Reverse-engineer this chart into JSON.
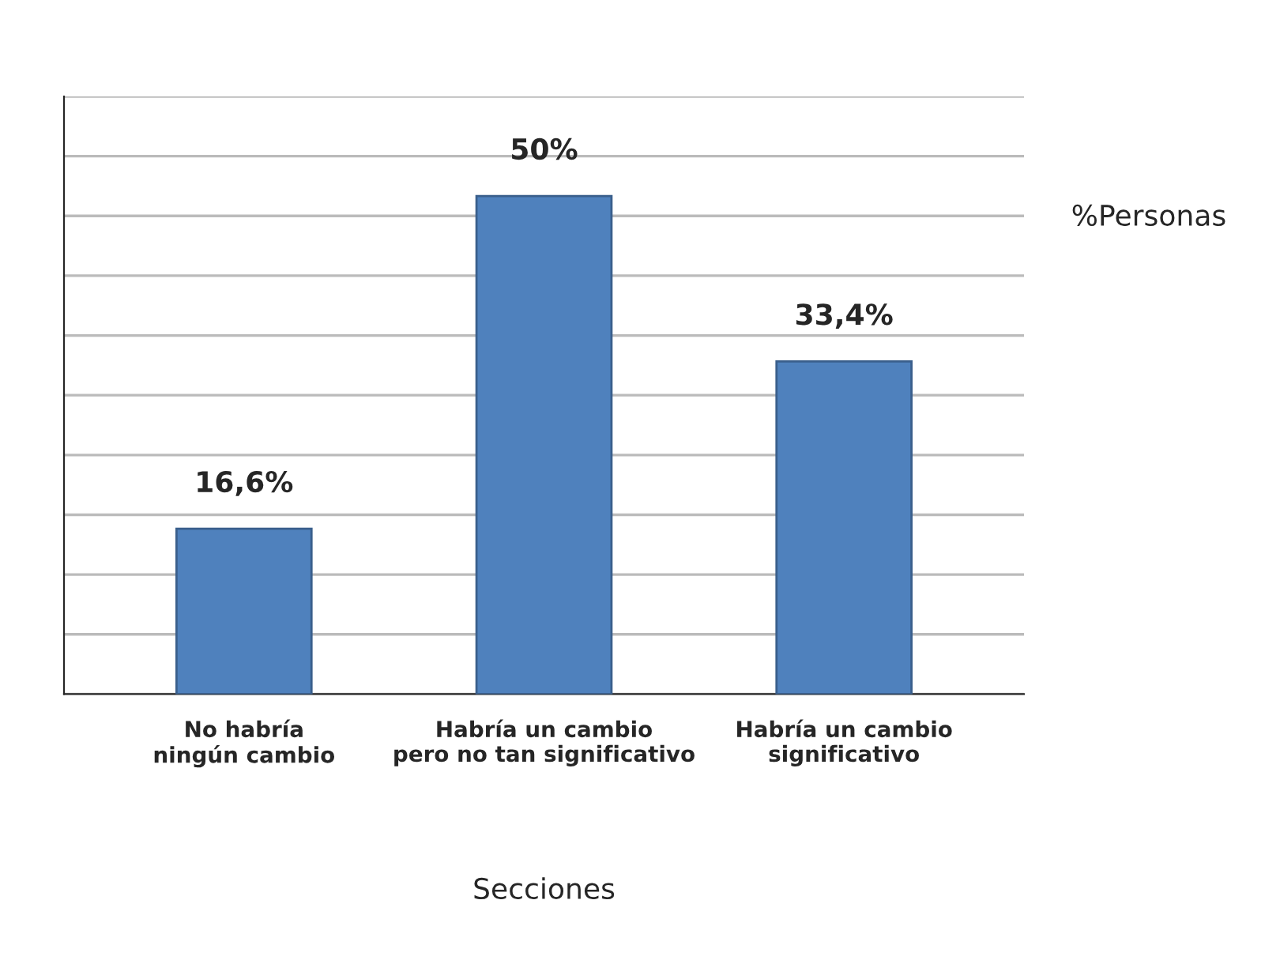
{
  "chart_data": {
    "type": "bar",
    "categories": [
      "No habría\nningún cambio",
      "Habría un cambio\npero no tan significativo",
      "Habría un cambio\nsignificativo"
    ],
    "values": [
      16.6,
      50,
      33.4
    ],
    "value_labels": [
      "16,6%",
      "50%",
      "33,4%"
    ],
    "color": "#4f81bd",
    "xlabel": "Secciones",
    "ylabel": "%Personas",
    "ylim": [
      0,
      60
    ],
    "yticks": [
      {
        "value": 0,
        "label": null
      },
      {
        "value": 6,
        "label": null
      },
      {
        "value": 12,
        "label": null
      },
      {
        "value": 18,
        "label": null
      },
      {
        "value": 24,
        "label": null
      },
      {
        "value": 30,
        "label": null
      },
      {
        "value": 36,
        "label": null
      },
      {
        "value": 42,
        "label": null
      },
      {
        "value": 48,
        "label": null
      },
      {
        "value": 54,
        "label": null
      },
      {
        "value": 60,
        "label": null
      }
    ],
    "grid": "y",
    "legend": false
  }
}
